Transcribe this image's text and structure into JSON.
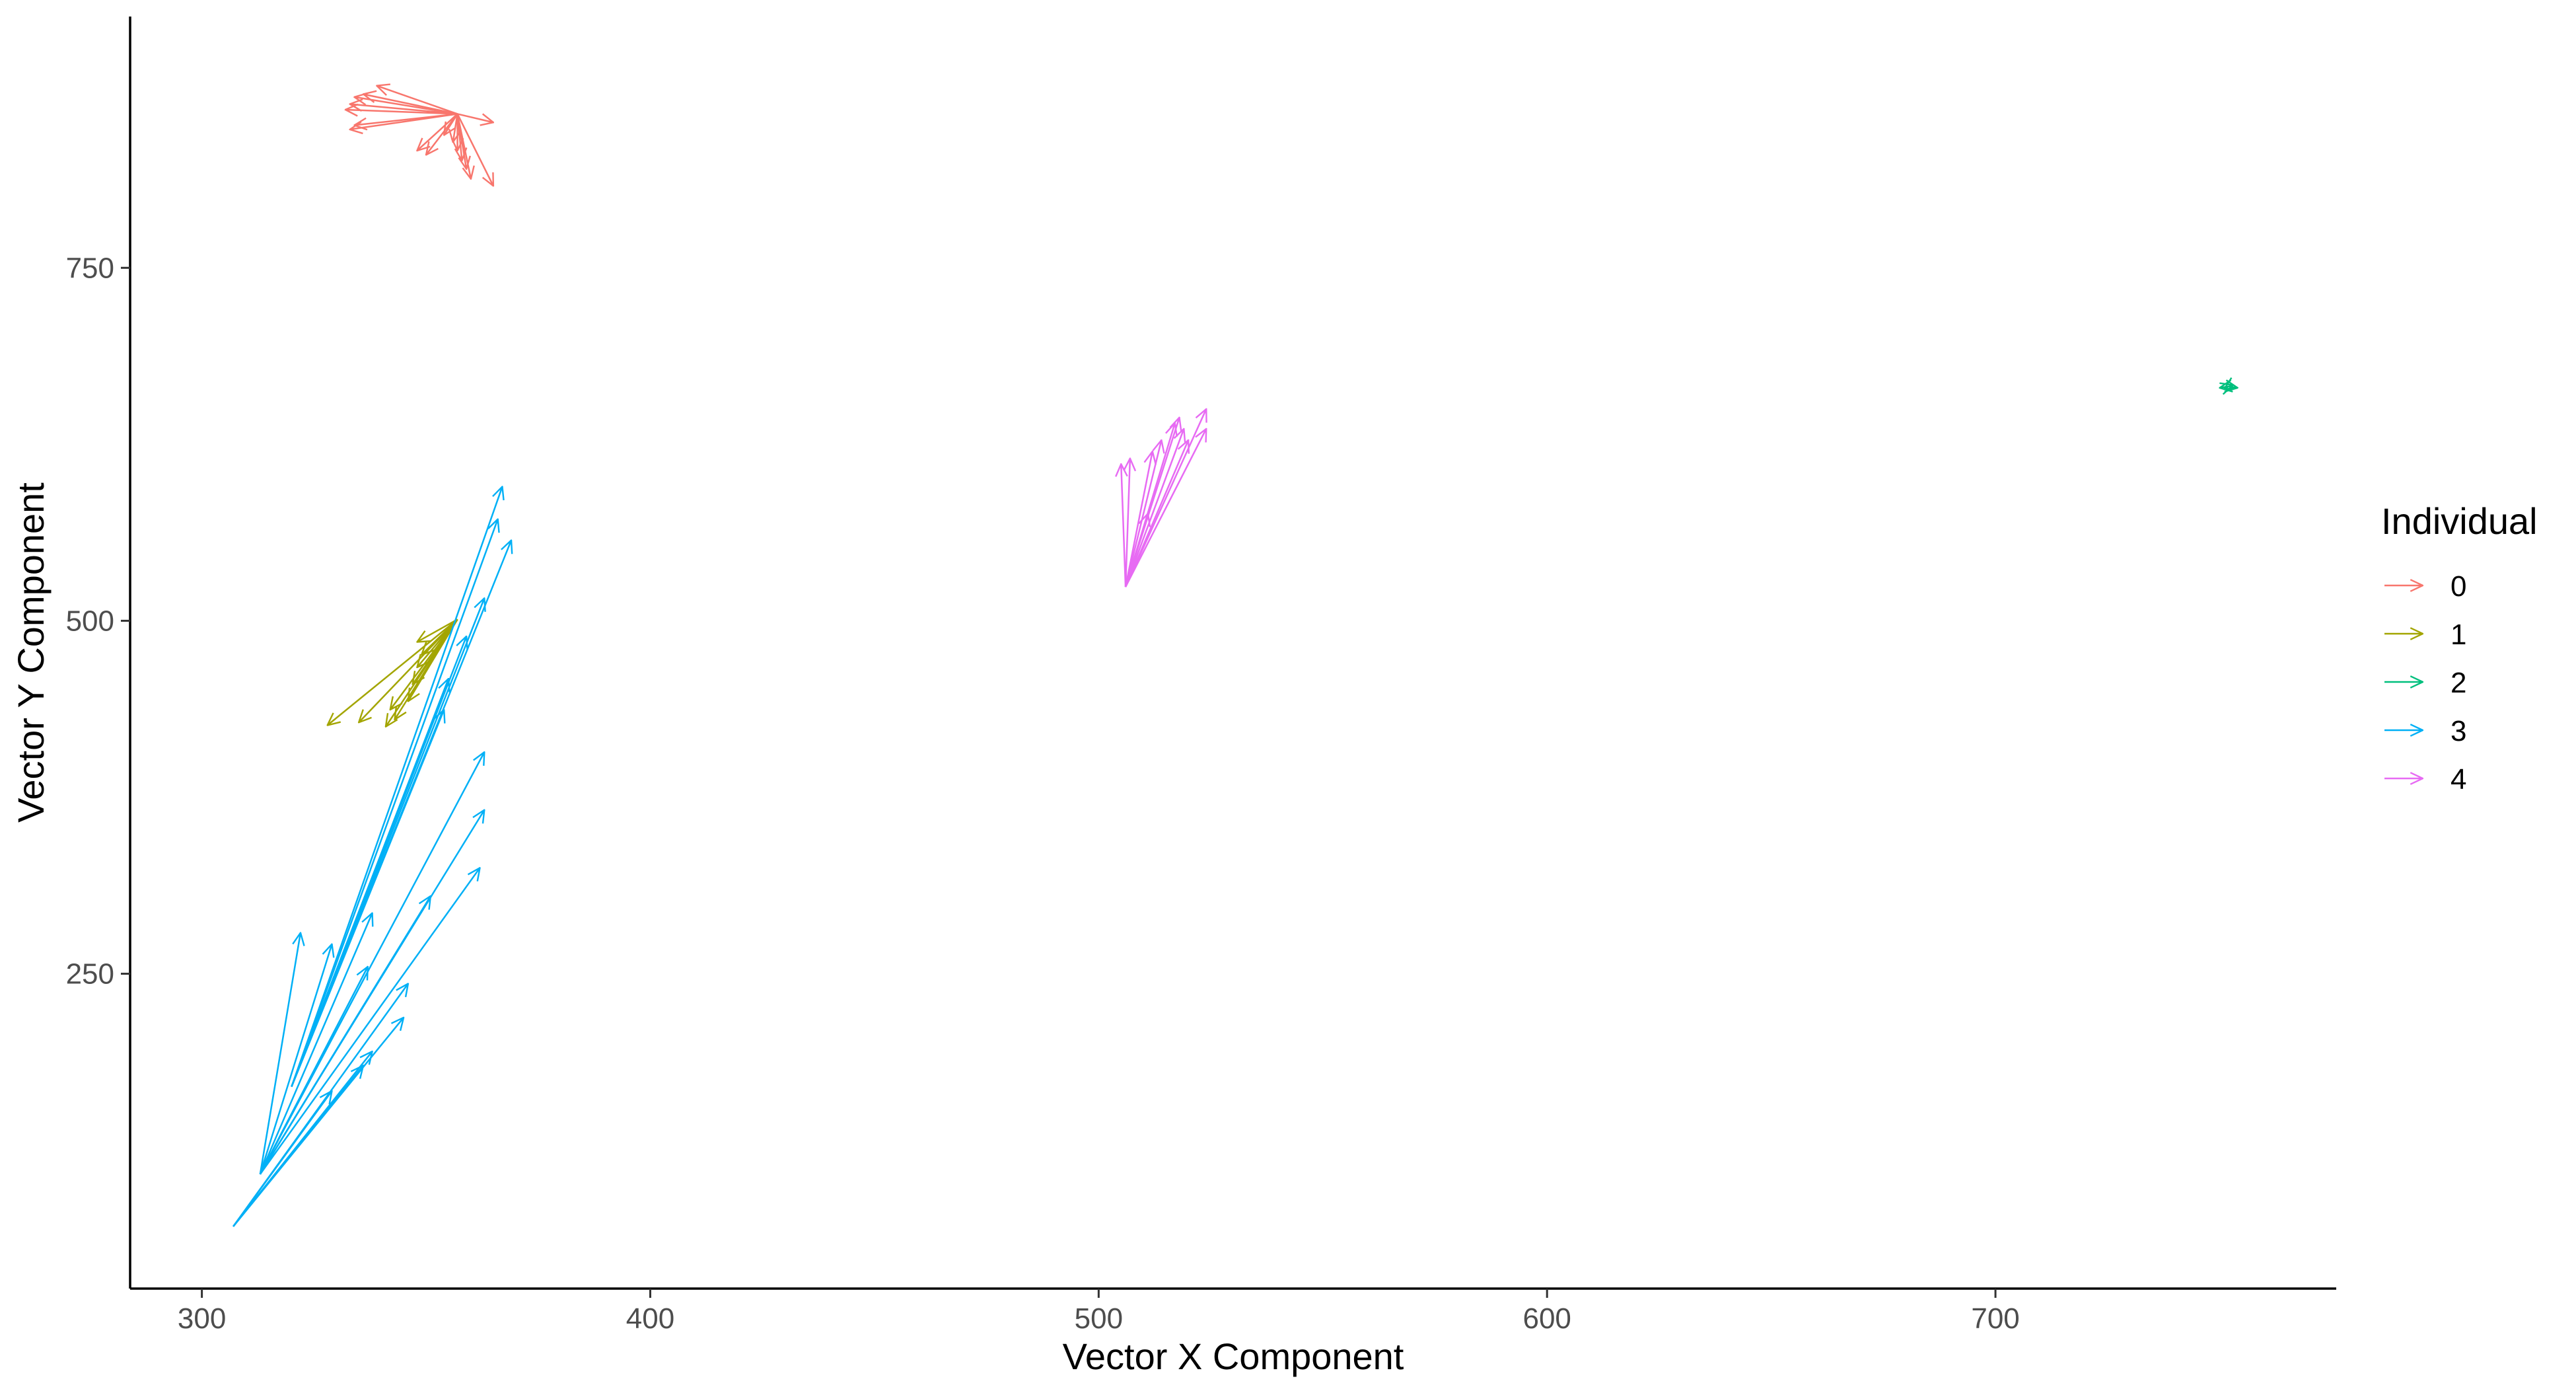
{
  "chart_data": {
    "type": "segment",
    "title": "",
    "xlabel": "Vector X Component",
    "ylabel": "Vector Y Component",
    "xlim": [
      284,
      776
    ],
    "ylim": [
      27,
      928
    ],
    "xticks": [
      300,
      400,
      500,
      600,
      700
    ],
    "yticks": [
      250,
      500,
      750
    ],
    "grid": false,
    "legend": {
      "title": "Individual",
      "placement": "right",
      "entries": [
        "0",
        "1",
        "2",
        "3",
        "4"
      ]
    },
    "colors": {
      "0": "#F8766D",
      "1": "#A3A500",
      "2": "#00BF7D",
      "3": "#00B0F6",
      "4": "#E76BF3"
    },
    "series": [
      {
        "name": "0",
        "segments": [
          {
            "x0": 357,
            "y0": 859,
            "x1": 339,
            "y1": 879
          },
          {
            "x0": 357,
            "y0": 859,
            "x1": 336,
            "y1": 873
          },
          {
            "x0": 357,
            "y0": 859,
            "x1": 334,
            "y1": 871
          },
          {
            "x0": 357,
            "y0": 859,
            "x1": 333,
            "y1": 866
          },
          {
            "x0": 357,
            "y0": 859,
            "x1": 332,
            "y1": 862
          },
          {
            "x0": 357,
            "y0": 859,
            "x1": 334,
            "y1": 851
          },
          {
            "x0": 357,
            "y0": 859,
            "x1": 333,
            "y1": 848
          },
          {
            "x0": 357,
            "y0": 859,
            "x1": 365,
            "y1": 853
          },
          {
            "x0": 357,
            "y0": 859,
            "x1": 348,
            "y1": 833
          },
          {
            "x0": 357,
            "y0": 859,
            "x1": 350,
            "y1": 830
          },
          {
            "x0": 357,
            "y0": 859,
            "x1": 354,
            "y1": 844
          },
          {
            "x0": 357,
            "y0": 859,
            "x1": 356,
            "y1": 839
          },
          {
            "x0": 357,
            "y0": 859,
            "x1": 357,
            "y1": 833
          },
          {
            "x0": 357,
            "y0": 859,
            "x1": 358,
            "y1": 826
          },
          {
            "x0": 357,
            "y0": 859,
            "x1": 359,
            "y1": 820
          },
          {
            "x0": 357,
            "y0": 859,
            "x1": 360,
            "y1": 813
          },
          {
            "x0": 357,
            "y0": 859,
            "x1": 365,
            "y1": 808
          }
        ]
      },
      {
        "name": "1",
        "segments": [
          {
            "x0": 357,
            "y0": 501,
            "x1": 328,
            "y1": 426
          },
          {
            "x0": 357,
            "y0": 501,
            "x1": 335,
            "y1": 428
          },
          {
            "x0": 357,
            "y0": 501,
            "x1": 341,
            "y1": 425
          },
          {
            "x0": 357,
            "y0": 501,
            "x1": 343,
            "y1": 430
          },
          {
            "x0": 357,
            "y0": 501,
            "x1": 342,
            "y1": 437
          },
          {
            "x0": 357,
            "y0": 501,
            "x1": 346,
            "y1": 443
          },
          {
            "x0": 357,
            "y0": 501,
            "x1": 347,
            "y1": 455
          },
          {
            "x0": 357,
            "y0": 501,
            "x1": 348,
            "y1": 467
          },
          {
            "x0": 357,
            "y0": 501,
            "x1": 349,
            "y1": 476
          },
          {
            "x0": 357,
            "y0": 501,
            "x1": 348,
            "y1": 485
          }
        ]
      },
      {
        "name": "2",
        "segments": [
          {
            "x0": 752,
            "y0": 666,
            "x1": 750,
            "y1": 665
          },
          {
            "x0": 752,
            "y0": 666,
            "x1": 754,
            "y1": 665
          },
          {
            "x0": 752,
            "y0": 666,
            "x1": 751,
            "y1": 664
          },
          {
            "x0": 752,
            "y0": 666,
            "x1": 753,
            "y1": 667
          }
        ]
      },
      {
        "name": "3",
        "segments": [
          {
            "x0": 307,
            "y0": 71,
            "x1": 329,
            "y1": 167
          },
          {
            "x0": 307,
            "y0": 71,
            "x1": 336,
            "y1": 185
          },
          {
            "x0": 307,
            "y0": 71,
            "x1": 338,
            "y1": 195
          },
          {
            "x0": 307,
            "y0": 71,
            "x1": 345,
            "y1": 219
          },
          {
            "x0": 307,
            "y0": 71,
            "x1": 346,
            "y1": 243
          },
          {
            "x0": 313,
            "y0": 108,
            "x1": 322,
            "y1": 279
          },
          {
            "x0": 313,
            "y0": 108,
            "x1": 329,
            "y1": 271
          },
          {
            "x0": 313,
            "y0": 108,
            "x1": 338,
            "y1": 293
          },
          {
            "x0": 313,
            "y0": 108,
            "x1": 351,
            "y1": 305
          },
          {
            "x0": 313,
            "y0": 108,
            "x1": 362,
            "y1": 325
          },
          {
            "x0": 313,
            "y0": 108,
            "x1": 363,
            "y1": 366
          },
          {
            "x0": 313,
            "y0": 108,
            "x1": 363,
            "y1": 407
          },
          {
            "x0": 313,
            "y0": 108,
            "x1": 337,
            "y1": 255
          },
          {
            "x0": 320,
            "y0": 170,
            "x1": 354,
            "y1": 437
          },
          {
            "x0": 320,
            "y0": 170,
            "x1": 355,
            "y1": 459
          },
          {
            "x0": 320,
            "y0": 170,
            "x1": 359,
            "y1": 489
          },
          {
            "x0": 320,
            "y0": 170,
            "x1": 363,
            "y1": 516
          },
          {
            "x0": 320,
            "y0": 170,
            "x1": 369,
            "y1": 557
          },
          {
            "x0": 320,
            "y0": 170,
            "x1": 366,
            "y1": 572
          },
          {
            "x0": 320,
            "y0": 170,
            "x1": 367,
            "y1": 595
          }
        ]
      },
      {
        "name": "4",
        "segments": [
          {
            "x0": 506,
            "y0": 524,
            "x1": 505,
            "y1": 611
          },
          {
            "x0": 506,
            "y0": 524,
            "x1": 507,
            "y1": 615
          },
          {
            "x0": 506,
            "y0": 524,
            "x1": 512,
            "y1": 620
          },
          {
            "x0": 506,
            "y0": 524,
            "x1": 514,
            "y1": 628
          },
          {
            "x0": 506,
            "y0": 524,
            "x1": 517,
            "y1": 640
          },
          {
            "x0": 506,
            "y0": 524,
            "x1": 518,
            "y1": 644
          },
          {
            "x0": 506,
            "y0": 524,
            "x1": 519,
            "y1": 636
          },
          {
            "x0": 506,
            "y0": 524,
            "x1": 520,
            "y1": 628
          },
          {
            "x0": 506,
            "y0": 524,
            "x1": 524,
            "y1": 650
          },
          {
            "x0": 506,
            "y0": 524,
            "x1": 524,
            "y1": 636
          },
          {
            "x0": 506,
            "y0": 524,
            "x1": 511,
            "y1": 576
          }
        ]
      }
    ]
  }
}
